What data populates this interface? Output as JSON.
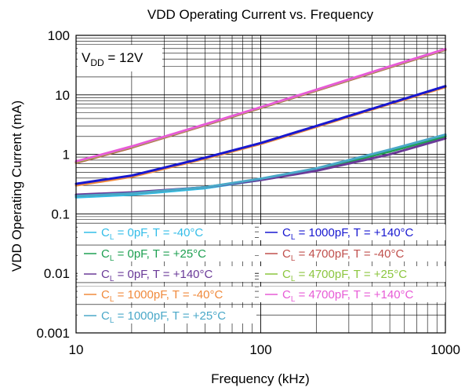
{
  "chart_data": {
    "type": "line",
    "title": "VDD Operating Current vs. Frequency",
    "xlabel": "Frequency (kHz)",
    "ylabel": "VDD Operating Current (mA)",
    "xscale": "log",
    "yscale": "log",
    "xlim": [
      10,
      1000
    ],
    "ylim": [
      0.001,
      100
    ],
    "x_ticks": [
      10,
      100,
      1000
    ],
    "x_tick_labels": [
      "10",
      "100",
      "1000"
    ],
    "y_ticks": [
      0.001,
      0.01,
      0.1,
      1,
      10,
      100
    ],
    "y_tick_labels": [
      "0.001",
      "0.01",
      "0.1",
      "1",
      "10",
      "100"
    ],
    "grid": true,
    "annotation": {
      "main": "V",
      "sub": "DD",
      "rest": " = 12V"
    },
    "legend_placement": "bottom",
    "series": [
      {
        "name_prefix": "C",
        "name_sub": "L",
        "name_rest": " = 0pF, T = -40°C",
        "color": "#33bde8",
        "x": [
          10,
          20,
          50,
          100,
          200,
          500,
          1000
        ],
        "y": [
          0.19,
          0.21,
          0.27,
          0.37,
          0.55,
          1.15,
          2.05
        ]
      },
      {
        "name_prefix": "C",
        "name_sub": "L",
        "name_rest": " = 0pF, T = +25°C",
        "color": "#1fa052",
        "x": [
          10,
          20,
          50,
          100,
          200,
          500,
          1000
        ],
        "y": [
          0.2,
          0.22,
          0.28,
          0.38,
          0.56,
          1.12,
          2.0
        ]
      },
      {
        "name_prefix": "C",
        "name_sub": "L",
        "name_rest": " = 0pF, T = +140°C",
        "color": "#6a3a98",
        "x": [
          10,
          20,
          50,
          100,
          200,
          500,
          1000
        ],
        "y": [
          0.21,
          0.23,
          0.28,
          0.37,
          0.53,
          1.0,
          1.85
        ]
      },
      {
        "name_prefix": "C",
        "name_sub": "L",
        "name_rest": " = 1000pF, T = -40°C",
        "color": "#f08a3c",
        "x": [
          10,
          20,
          50,
          100,
          200,
          500,
          1000
        ],
        "y": [
          0.3,
          0.42,
          0.85,
          1.5,
          2.9,
          7.0,
          13.5
        ]
      },
      {
        "name_prefix": "C",
        "name_sub": "L",
        "name_rest": " = 1000pF, T = +25°C",
        "color": "#4aa8c8",
        "x": [
          10,
          20,
          50,
          100,
          200,
          500,
          1000
        ],
        "y": [
          0.2,
          0.22,
          0.28,
          0.39,
          0.58,
          1.2,
          2.15
        ]
      },
      {
        "name_prefix": "C",
        "name_sub": "L",
        "name_rest": " = 1000pF, T = +140°C",
        "color": "#1818d0",
        "x": [
          10,
          20,
          50,
          100,
          200,
          500,
          1000
        ],
        "y": [
          0.32,
          0.44,
          0.88,
          1.55,
          3.0,
          7.2,
          14.0
        ]
      },
      {
        "name_prefix": "C",
        "name_sub": "L",
        "name_rest": " = 4700pF, T = -40°C",
        "color": "#c0504d",
        "x": [
          10,
          20,
          50,
          100,
          200,
          500,
          1000
        ],
        "y": [
          0.72,
          1.3,
          3.1,
          6.0,
          11.8,
          29.0,
          57.0
        ]
      },
      {
        "name_prefix": "C",
        "name_sub": "L",
        "name_rest": " = 4700pF, T = +25°C",
        "color": "#8cc63f",
        "x": [
          10,
          20,
          50,
          100,
          200,
          500,
          1000
        ],
        "y": [
          0.74,
          1.33,
          3.15,
          6.1,
          12.0,
          29.5,
          58.0
        ]
      },
      {
        "name_prefix": "C",
        "name_sub": "L",
        "name_rest": " = 4700pF, T = +140°C",
        "color": "#e75bd6",
        "x": [
          10,
          20,
          50,
          100,
          200,
          500,
          1000
        ],
        "y": [
          0.76,
          1.36,
          3.2,
          6.2,
          12.2,
          30.0,
          59.0
        ]
      }
    ]
  }
}
